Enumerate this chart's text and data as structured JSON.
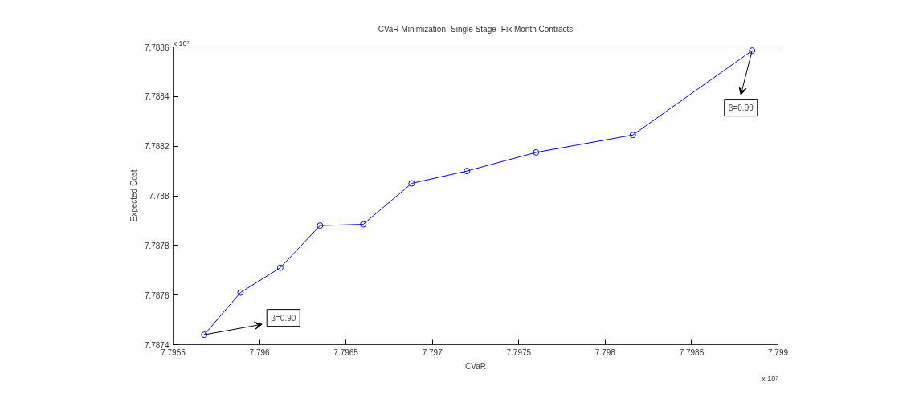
{
  "chart_data": {
    "type": "line",
    "title": "CVaR Minimization- Single Stage- Fix Month Contracts",
    "xlabel": "CVaR",
    "ylabel": "Expected Cost",
    "x": [
      7.79568,
      7.79589,
      7.79612,
      7.79635,
      7.7966,
      7.79688,
      7.7972,
      7.7976,
      7.79816,
      7.79885
    ],
    "series": [
      {
        "color": "#0000ff",
        "values": [
          7.78744,
          7.78761,
          7.78771,
          7.78788,
          7.787885,
          7.78805,
          7.7881,
          7.788175,
          7.788245,
          7.788585
        ]
      }
    ],
    "marker": "circle",
    "line_style": "solid",
    "grid": false,
    "xlim": [
      7.7955,
      7.799
    ],
    "xticks": [
      7.7955,
      7.796,
      7.7965,
      7.797,
      7.7975,
      7.798,
      7.7985,
      7.799
    ],
    "ylim": [
      7.7874,
      7.7886
    ],
    "yticks": [
      7.7874,
      7.7876,
      7.7878,
      7.788,
      7.7882,
      7.7884,
      7.7886
    ],
    "annotations": [
      "x 10⁷",
      "x 10⁷",
      {
        "text": "β=0.90",
        "x": 7.79568,
        "y": 7.78744
      },
      {
        "text": "β=0.99",
        "x": 7.79885,
        "y": 7.788585
      }
    ]
  }
}
